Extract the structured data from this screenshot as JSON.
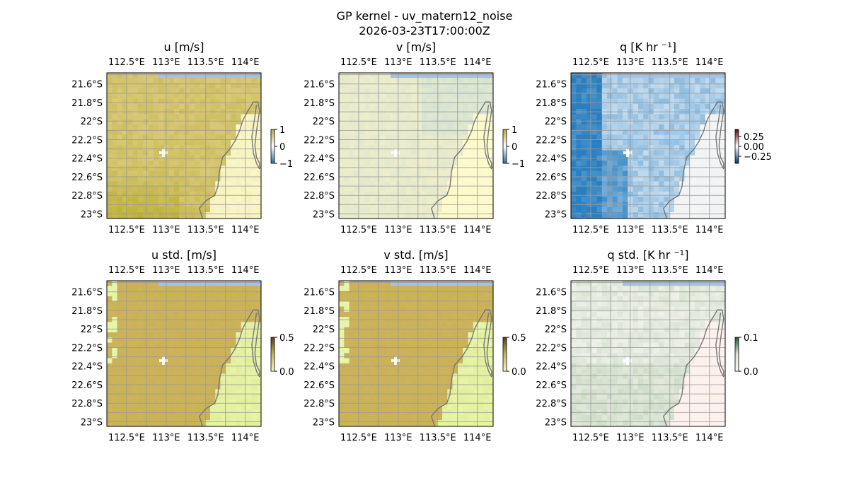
{
  "figure": {
    "title": "GP kernel - uv_matern12_noise",
    "subtitle": "2026-03-23T17:00:00Z"
  },
  "chart_data": [
    {
      "type": "heatmap",
      "title": "u [m/s]",
      "lon_ticks": [
        "112.5°E",
        "113°E",
        "113.5°E",
        "114°E"
      ],
      "lat_ticks": [
        "21.6°S",
        "21.8°S",
        "22°S",
        "22.2°S",
        "22.4°S",
        "22.6°S",
        "22.8°S",
        "23°S"
      ],
      "lon_range": [
        112.25,
        114.2
      ],
      "lat_range": [
        -23.05,
        -21.48
      ],
      "colorbar": {
        "ticks": [
          "1",
          "0",
          "−1"
        ],
        "range": [
          -1,
          1
        ],
        "colors": [
          "#2b6a9a",
          "#ffffff",
          "#b5a832"
        ]
      },
      "field": {
        "land": "#faf7c8",
        "sea": "#d9c978",
        "strong": "#b8ad35",
        "ocean": "#a9c1e0"
      }
    },
    {
      "type": "heatmap",
      "title": "v [m/s]",
      "lon_ticks": [
        "112.5°E",
        "113°E",
        "113.5°E",
        "114°E"
      ],
      "lat_ticks": [
        "21.6°S",
        "21.8°S",
        "22°S",
        "22.2°S",
        "22.4°S",
        "22.6°S",
        "22.8°S",
        "23°S"
      ],
      "lon_range": [
        112.25,
        114.2
      ],
      "lat_range": [
        -23.05,
        -21.48
      ],
      "colorbar": {
        "ticks": [
          "1",
          "0",
          "−1"
        ],
        "range": [
          -1,
          1
        ],
        "colors": [
          "#2b6a9a",
          "#ffffff",
          "#b5a832"
        ]
      },
      "field": {
        "land": "#fdfbcc",
        "sea": "#f1efc8",
        "strong": "#cfe0d6",
        "ocean": "#a9c1e0"
      }
    },
    {
      "type": "heatmap",
      "title": "q [K hr ⁻¹]",
      "lon_ticks": [
        "112.5°E",
        "113°E",
        "113.5°E",
        "114°E"
      ],
      "lat_ticks": [
        "21.6°S",
        "21.8°S",
        "22°S",
        "22.2°S",
        "22.4°S",
        "22.6°S",
        "22.8°S",
        "23°S"
      ],
      "lon_range": [
        112.25,
        114.2
      ],
      "lat_range": [
        -23.05,
        -21.48
      ],
      "colorbar": {
        "ticks": [
          "0.25",
          "0.00",
          "−0.25"
        ],
        "range": [
          -0.35,
          0.35
        ],
        "colors": [
          "#08306b",
          "#ffffff",
          "#67000d"
        ]
      },
      "field": {
        "land": "#f4f4f4",
        "sea": "#d8e8f5",
        "strong": "#2a7fc0",
        "ocean": "#a9c1e0"
      }
    },
    {
      "type": "heatmap",
      "title": "u std. [m/s]",
      "lon_ticks": [
        "112.5°E",
        "113°E",
        "113.5°E",
        "114°E"
      ],
      "lat_ticks": [
        "21.6°S",
        "21.8°S",
        "22°S",
        "22.2°S",
        "22.4°S",
        "22.6°S",
        "22.8°S",
        "23°S"
      ],
      "lon_range": [
        112.25,
        114.2
      ],
      "lat_range": [
        -23.05,
        -21.48
      ],
      "colorbar": {
        "ticks": [
          "0.5",
          "0.0"
        ],
        "range": [
          0,
          0.5
        ],
        "colors": [
          "#fdf3c0",
          "#c8b25a",
          "#5a3b10"
        ]
      },
      "field": {
        "land": "#e6f5a7",
        "sea": "#ccb35a",
        "strong": "#c4ac55",
        "ocean": "#a9c1e0"
      }
    },
    {
      "type": "heatmap",
      "title": "v std. [m/s]",
      "lon_ticks": [
        "112.5°E",
        "113°E",
        "113.5°E",
        "114°E"
      ],
      "lat_ticks": [
        "21.6°S",
        "21.8°S",
        "22°S",
        "22.2°S",
        "22.4°S",
        "22.6°S",
        "22.8°S",
        "23°S"
      ],
      "lon_range": [
        112.25,
        114.2
      ],
      "lat_range": [
        -23.05,
        -21.48
      ],
      "colorbar": {
        "ticks": [
          "0.5",
          "0.0"
        ],
        "range": [
          0,
          0.5
        ],
        "colors": [
          "#fdf3c0",
          "#c8b25a",
          "#5a3b10"
        ]
      },
      "field": {
        "land": "#e6f5a7",
        "sea": "#ccb35a",
        "strong": "#c4ac55",
        "ocean": "#a9c1e0"
      }
    },
    {
      "type": "heatmap",
      "title": "q std. [K hr ⁻¹]",
      "lon_ticks": [
        "112.5°E",
        "113°E",
        "113.5°E",
        "114°E"
      ],
      "lat_ticks": [
        "21.6°S",
        "21.8°S",
        "22°S",
        "22.2°S",
        "22.4°S",
        "22.6°S",
        "22.8°S",
        "23°S"
      ],
      "lon_range": [
        112.25,
        114.2
      ],
      "lat_range": [
        -23.05,
        -21.48
      ],
      "colorbar": {
        "ticks": [
          "0.1",
          "0.0"
        ],
        "range": [
          0,
          0.1
        ],
        "colors": [
          "#fff5f0",
          "#d8e6d4",
          "#1b5e20"
        ]
      },
      "field": {
        "land": "#fdf1ee",
        "sea": "#eef0e8",
        "strong": "#bcd3b6",
        "ocean": "#a9c1e0"
      }
    }
  ]
}
